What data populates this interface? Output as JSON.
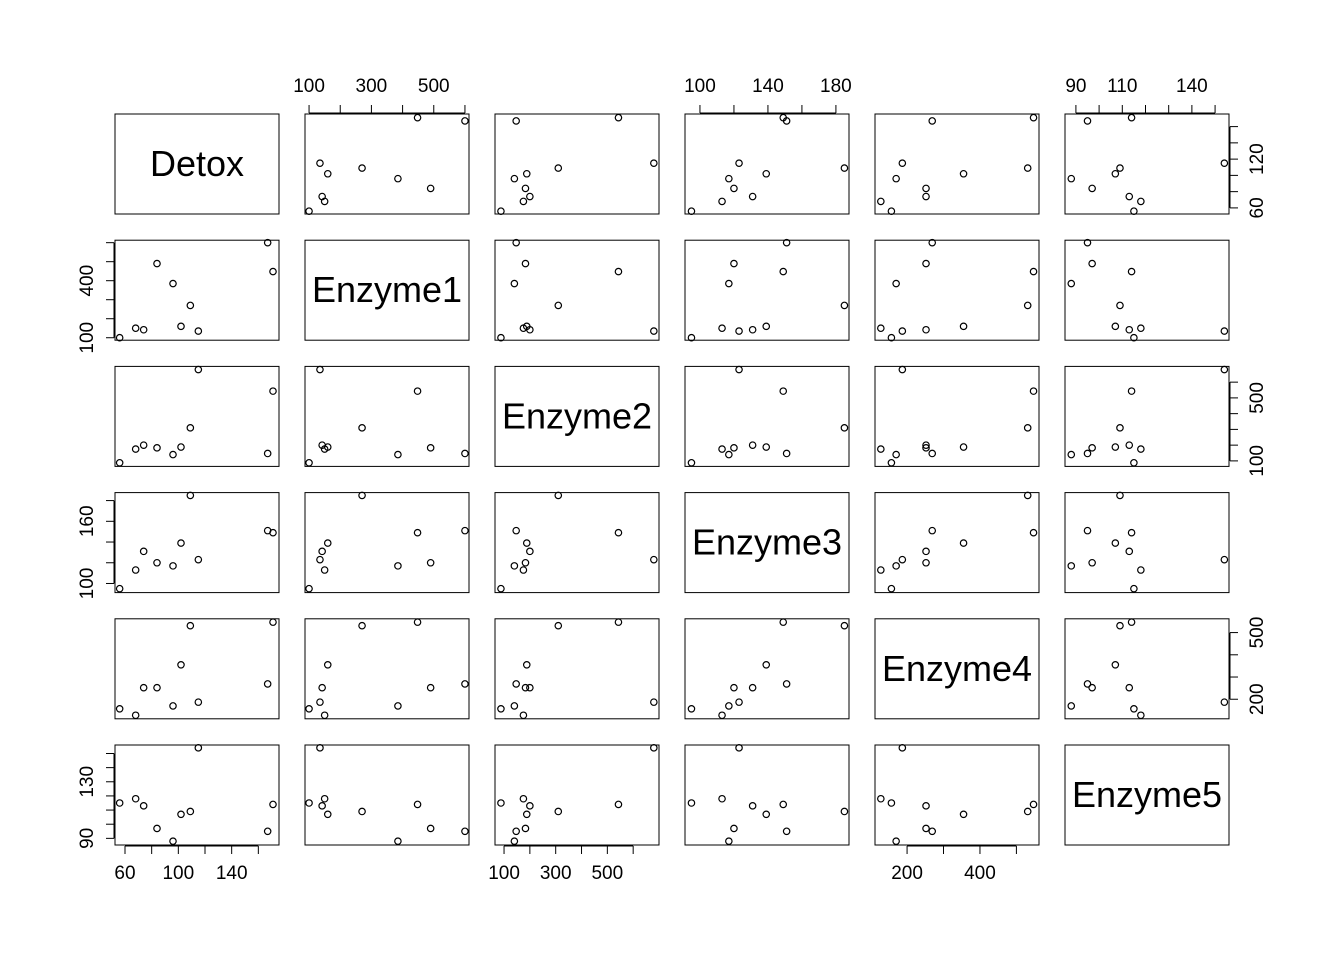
{
  "chart_data": {
    "type": "scatter-matrix",
    "variables": [
      {
        "name": "Detox",
        "values": [
          56,
          68,
          74,
          84,
          96,
          102,
          109,
          115,
          167,
          171
        ],
        "lim": [
          52.5,
          175.5
        ],
        "ticks": [
          60,
          80,
          100,
          120,
          140,
          160
        ],
        "xticks": [
          60,
          100,
          140
        ],
        "yticks": [
          60,
          120
        ]
      },
      {
        "name": "Enzyme1",
        "values": [
          100,
          150,
          142,
          490,
          385,
          160,
          270,
          135,
          600,
          448
        ],
        "lim": [
          87,
          613
        ],
        "ticks": [
          100,
          200,
          300,
          400,
          500,
          600
        ],
        "xticks": [
          100,
          300,
          500
        ],
        "yticks": [
          100,
          400
        ]
      },
      {
        "name": "Enzyme2",
        "values": [
          88,
          175,
          200,
          183,
          140,
          188,
          310,
          680,
          147,
          543
        ],
        "lim": [
          65,
          700
        ],
        "ticks": [
          100,
          200,
          300,
          400,
          500,
          600
        ],
        "xticks": [
          100,
          300,
          500
        ],
        "yticks": [
          100,
          500
        ]
      },
      {
        "name": "Enzyme3",
        "values": [
          95,
          113,
          131,
          120,
          117,
          139,
          185,
          123,
          151,
          149
        ],
        "lim": [
          91.2,
          187.7
        ],
        "ticks": [
          100,
          120,
          140,
          160,
          180
        ],
        "xticks": [
          100,
          140,
          180
        ],
        "yticks": [
          100,
          160
        ]
      },
      {
        "name": "Enzyme4",
        "values": [
          157,
          128,
          252,
          252,
          170,
          355,
          531,
          187,
          269,
          547
        ],
        "lim": [
          112,
          562
        ],
        "ticks": [
          200,
          300,
          400,
          500
        ],
        "xticks": [
          200,
          400
        ],
        "yticks": [
          200,
          500
        ]
      },
      {
        "name": "Enzyme5",
        "values": [
          115,
          118,
          113,
          97,
          88,
          107,
          109,
          154,
          95,
          114
        ],
        "lim": [
          85.3,
          156
        ],
        "ticks": [
          90,
          100,
          110,
          120,
          130,
          140,
          150
        ],
        "xticks": [
          90,
          110,
          140
        ],
        "yticks": [
          90,
          130
        ]
      }
    ]
  }
}
